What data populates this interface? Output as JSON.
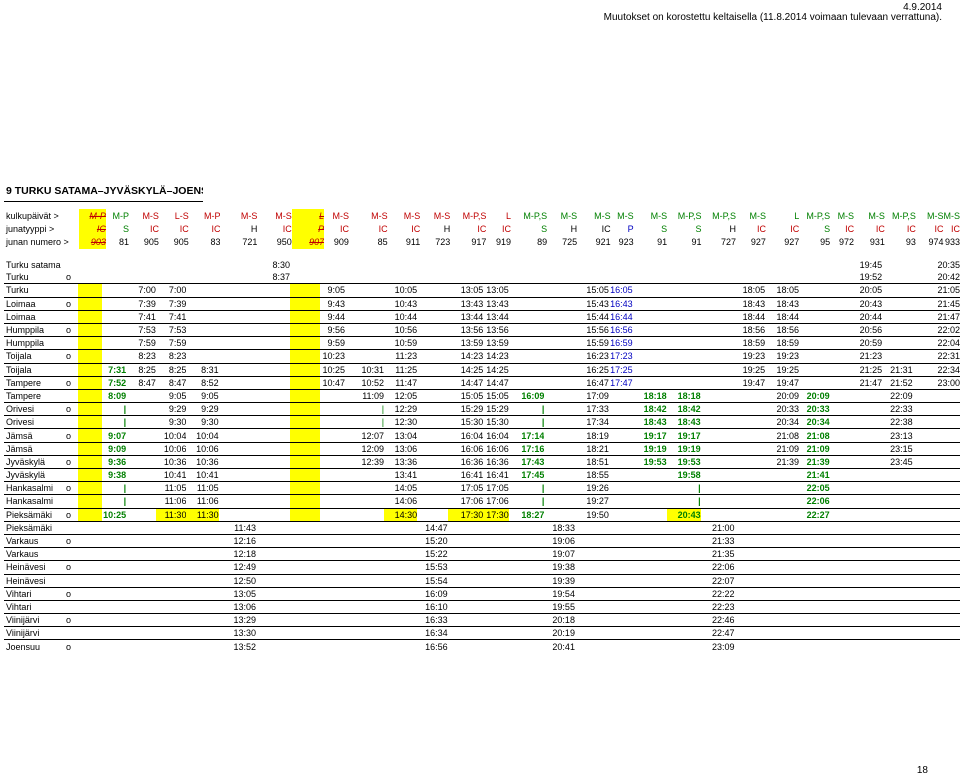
{
  "header": {
    "date": "4.9.2014",
    "notice": "Muutokset on korostettu keltaisella (11.8.2014 voimaan tulevaan verrattuna)."
  },
  "title": "9 TURKU SATAMA–JYVÄSKYLÄ–JOENSUU",
  "page_number": "18",
  "colors": {
    "highlight": "#ffff00",
    "red": "#c00000",
    "green": "#008000",
    "blue": "#0000c0"
  },
  "top_rows": [
    {
      "label": "kulkupäivät >",
      "cells": [
        "M-P",
        "M-P",
        "M-S",
        "L-S",
        "M-P",
        "M-S",
        "M-S",
        "L",
        "M-S",
        "M-S",
        "M-S",
        "M-S",
        "M-P,S",
        "L",
        "M-P,S",
        "M-S",
        "M-S",
        "M-S",
        "M-S",
        "M-P,S",
        "M-P,S",
        "M-S",
        "L",
        "M-P,S",
        "M-S",
        "M-S",
        "M-P,S",
        "M-S",
        "M-S"
      ]
    },
    {
      "label": "junatyyppi >",
      "cells": [
        "IC",
        "S",
        "IC",
        "IC",
        "IC",
        "H",
        "IC",
        "P",
        "IC",
        "IC",
        "IC",
        "H",
        "IC",
        "IC",
        "S",
        "H",
        "IC",
        "P",
        "S",
        "S",
        "H",
        "IC",
        "IC",
        "S",
        "IC",
        "IC",
        "IC",
        "IC",
        "IC"
      ]
    },
    {
      "label": "junan numero >",
      "cells": [
        "903",
        "81",
        "905",
        "905",
        "83",
        "721",
        "950",
        "907",
        "909",
        "85",
        "911",
        "723",
        "917",
        "919",
        "89",
        "725",
        "921",
        "923",
        "91",
        "91",
        "727",
        "927",
        "927",
        "95",
        "972",
        "931",
        "93",
        "974",
        "933"
      ]
    }
  ],
  "stations": [
    {
      "name": "Turku satama",
      "mark": "",
      "times": [
        "",
        "",
        "",
        "",
        "",
        "",
        "8:30",
        "",
        "",
        "",
        "",
        "",
        "",
        "",
        "",
        "",
        "",
        "",
        "",
        "",
        "",
        "",
        "",
        "",
        "",
        "19:45",
        "",
        "",
        "20:35"
      ]
    },
    {
      "name": "Turku",
      "mark": "o",
      "times": [
        "",
        "",
        "",
        "",
        "",
        "",
        "8:37",
        "",
        "",
        "",
        "",
        "",
        "",
        "",
        "",
        "",
        "",
        "",
        "",
        "",
        "",
        "",
        "",
        "",
        "",
        "19:52",
        "",
        "",
        "20:42"
      ]
    },
    {
      "name": "Turku",
      "mark": "",
      "times": [
        "",
        "",
        "7:00",
        "7:00",
        "",
        "",
        "",
        "",
        "9:05",
        "",
        "10:05",
        "",
        "13:05",
        "13:05",
        "",
        "",
        "15:05",
        "16:05",
        "",
        "",
        "",
        "18:05",
        "18:05",
        "",
        "",
        "20:05",
        "",
        "",
        "21:05"
      ]
    },
    {
      "name": "Loimaa",
      "mark": "o",
      "times": [
        "",
        "",
        "7:39",
        "7:39",
        "",
        "",
        "",
        "",
        "9:43",
        "",
        "10:43",
        "",
        "13:43",
        "13:43",
        "",
        "",
        "15:43",
        "16:43",
        "",
        "",
        "",
        "18:43",
        "18:43",
        "",
        "",
        "20:43",
        "",
        "",
        "21:45"
      ]
    },
    {
      "name": "Loimaa",
      "mark": "",
      "times": [
        "",
        "",
        "7:41",
        "7:41",
        "",
        "",
        "",
        "",
        "9:44",
        "",
        "10:44",
        "",
        "13:44",
        "13:44",
        "",
        "",
        "15:44",
        "16:44",
        "",
        "",
        "",
        "18:44",
        "18:44",
        "",
        "",
        "20:44",
        "",
        "",
        "21:47"
      ]
    },
    {
      "name": "Humppila",
      "mark": "o",
      "times": [
        "",
        "",
        "7:53",
        "7:53",
        "",
        "",
        "",
        "",
        "9:56",
        "",
        "10:56",
        "",
        "13:56",
        "13:56",
        "",
        "",
        "15:56",
        "16:56",
        "",
        "",
        "",
        "18:56",
        "18:56",
        "",
        "",
        "20:56",
        "",
        "",
        "22:02"
      ]
    },
    {
      "name": "Humppila",
      "mark": "",
      "times": [
        "",
        "",
        "7:59",
        "7:59",
        "",
        "",
        "",
        "",
        "9:59",
        "",
        "10:59",
        "",
        "13:59",
        "13:59",
        "",
        "",
        "15:59",
        "16:59",
        "",
        "",
        "",
        "18:59",
        "18:59",
        "",
        "",
        "20:59",
        "",
        "",
        "22:04"
      ]
    },
    {
      "name": "Toijala",
      "mark": "o",
      "times": [
        "",
        "",
        "8:23",
        "8:23",
        "",
        "",
        "",
        "",
        "10:23",
        "",
        "11:23",
        "",
        "14:23",
        "14:23",
        "",
        "",
        "16:23",
        "17:23",
        "",
        "",
        "",
        "19:23",
        "19:23",
        "",
        "",
        "21:23",
        "",
        "",
        "22:31"
      ]
    },
    {
      "name": "Toijala",
      "mark": "",
      "times": [
        "",
        "7:31",
        "8:25",
        "8:25",
        "8:31",
        "",
        "",
        "",
        "10:25",
        "10:31",
        "11:25",
        "",
        "14:25",
        "14:25",
        "",
        "",
        "16:25",
        "17:25",
        "",
        "",
        "",
        "19:25",
        "19:25",
        "",
        "",
        "21:25",
        "21:31",
        "",
        "22:34"
      ]
    },
    {
      "name": "Tampere",
      "mark": "o",
      "times": [
        "",
        "7:52",
        "8:47",
        "8:47",
        "8:52",
        "",
        "",
        "",
        "10:47",
        "10:52",
        "11:47",
        "",
        "14:47",
        "14:47",
        "",
        "",
        "16:47",
        "17:47",
        "",
        "",
        "",
        "19:47",
        "19:47",
        "",
        "",
        "21:47",
        "21:52",
        "",
        "23:00"
      ]
    },
    {
      "name": "Tampere",
      "mark": "",
      "times": [
        "",
        "8:09",
        "",
        "9:05",
        "9:05",
        "",
        "",
        "",
        "",
        "11:09",
        "12:05",
        "",
        "15:05",
        "15:05",
        "16:09",
        "",
        "17:09",
        "",
        "18:18",
        "18:18",
        "",
        "",
        "20:09",
        "20:09",
        "",
        "",
        "22:09",
        "",
        ""
      ]
    },
    {
      "name": "Orivesi",
      "mark": "o",
      "times": [
        "",
        "|",
        "",
        "9:29",
        "9:29",
        "",
        "",
        "",
        "",
        "|",
        "12:29",
        "",
        "15:29",
        "15:29",
        "|",
        "",
        "17:33",
        "",
        "18:42",
        "18:42",
        "",
        "",
        "20:33",
        "20:33",
        "",
        "",
        "22:33",
        "",
        ""
      ]
    },
    {
      "name": "Orivesi",
      "mark": "",
      "times": [
        "",
        "|",
        "",
        "9:30",
        "9:30",
        "",
        "",
        "",
        "",
        "|",
        "12:30",
        "",
        "15:30",
        "15:30",
        "|",
        "",
        "17:34",
        "",
        "18:43",
        "18:43",
        "",
        "",
        "20:34",
        "20:34",
        "",
        "",
        "22:38",
        "",
        ""
      ]
    },
    {
      "name": "Jämsä",
      "mark": "o",
      "times": [
        "",
        "9:07",
        "",
        "10:04",
        "10:04",
        "",
        "",
        "",
        "",
        "12:07",
        "13:04",
        "",
        "16:04",
        "16:04",
        "17:14",
        "",
        "18:19",
        "",
        "19:17",
        "19:17",
        "",
        "",
        "21:08",
        "21:08",
        "",
        "",
        "23:13",
        "",
        ""
      ]
    },
    {
      "name": "Jämsä",
      "mark": "",
      "times": [
        "",
        "9:09",
        "",
        "10:06",
        "10:06",
        "",
        "",
        "",
        "",
        "12:09",
        "13:06",
        "",
        "16:06",
        "16:06",
        "17:16",
        "",
        "18:21",
        "",
        "19:19",
        "19:19",
        "",
        "",
        "21:09",
        "21:09",
        "",
        "",
        "23:15",
        "",
        ""
      ]
    },
    {
      "name": "Jyväskylä",
      "mark": "o",
      "times": [
        "",
        "9:36",
        "",
        "10:36",
        "10:36",
        "",
        "",
        "",
        "",
        "12:39",
        "13:36",
        "",
        "16:36",
        "16:36",
        "17:43",
        "",
        "18:51",
        "",
        "19:53",
        "19:53",
        "",
        "",
        "21:39",
        "21:39",
        "",
        "",
        "23:45",
        "",
        ""
      ]
    },
    {
      "name": "Jyväskylä",
      "mark": "",
      "times": [
        "",
        "9:38",
        "",
        "10:41",
        "10:41",
        "",
        "",
        "",
        "",
        "",
        "13:41",
        "",
        "16:41",
        "16:41",
        "17:45",
        "",
        "18:55",
        "",
        "",
        "19:58",
        "",
        "",
        "",
        "21:41",
        "",
        "",
        "",
        "",
        ""
      ]
    },
    {
      "name": "Hankasalmi",
      "mark": "o",
      "times": [
        "",
        "|",
        "",
        "11:05",
        "11:05",
        "",
        "",
        "",
        "",
        "",
        "14:05",
        "",
        "17:05",
        "17:05",
        "|",
        "",
        "19:26",
        "",
        "",
        "|",
        "",
        "",
        "",
        "22:05",
        "",
        "",
        "",
        "",
        ""
      ]
    },
    {
      "name": "Hankasalmi",
      "mark": "",
      "times": [
        "",
        "|",
        "",
        "11:06",
        "11:06",
        "",
        "",
        "",
        "",
        "",
        "14:06",
        "",
        "17:06",
        "17:06",
        "|",
        "",
        "19:27",
        "",
        "",
        "|",
        "",
        "",
        "",
        "22:06",
        "",
        "",
        "",
        "",
        ""
      ]
    },
    {
      "name": "Pieksämäki",
      "mark": "o",
      "times": [
        "",
        "10:25",
        "",
        "11:30",
        "11:30",
        "",
        "",
        "",
        "",
        "",
        "14:30",
        "",
        "17:30",
        "17:30",
        "18:27",
        "",
        "19:50",
        "",
        "",
        "20:43",
        "",
        "",
        "",
        "22:27",
        "",
        "",
        "",
        "",
        ""
      ]
    },
    {
      "name": "Pieksämäki",
      "mark": "",
      "times": [
        "",
        "",
        "",
        "",
        "",
        "11:43",
        "",
        "",
        "",
        "",
        "",
        "14:47",
        "",
        "",
        "",
        "18:33",
        "",
        "",
        "",
        "",
        "21:00",
        "",
        "",
        "",
        "",
        "",
        "",
        "",
        ""
      ]
    },
    {
      "name": "Varkaus",
      "mark": "o",
      "times": [
        "",
        "",
        "",
        "",
        "",
        "12:16",
        "",
        "",
        "",
        "",
        "",
        "15:20",
        "",
        "",
        "",
        "19:06",
        "",
        "",
        "",
        "",
        "21:33",
        "",
        "",
        "",
        "",
        "",
        "",
        "",
        ""
      ]
    },
    {
      "name": "Varkaus",
      "mark": "",
      "times": [
        "",
        "",
        "",
        "",
        "",
        "12:18",
        "",
        "",
        "",
        "",
        "",
        "15:22",
        "",
        "",
        "",
        "19:07",
        "",
        "",
        "",
        "",
        "21:35",
        "",
        "",
        "",
        "",
        "",
        "",
        "",
        ""
      ]
    },
    {
      "name": "Heinävesi",
      "mark": "o",
      "times": [
        "",
        "",
        "",
        "",
        "",
        "12:49",
        "",
        "",
        "",
        "",
        "",
        "15:53",
        "",
        "",
        "",
        "19:38",
        "",
        "",
        "",
        "",
        "22:06",
        "",
        "",
        "",
        "",
        "",
        "",
        "",
        ""
      ]
    },
    {
      "name": "Heinävesi",
      "mark": "",
      "times": [
        "",
        "",
        "",
        "",
        "",
        "12:50",
        "",
        "",
        "",
        "",
        "",
        "15:54",
        "",
        "",
        "",
        "19:39",
        "",
        "",
        "",
        "",
        "22:07",
        "",
        "",
        "",
        "",
        "",
        "",
        "",
        ""
      ]
    },
    {
      "name": "Vihtari",
      "mark": "o",
      "times": [
        "",
        "",
        "",
        "",
        "",
        "13:05",
        "",
        "",
        "",
        "",
        "",
        "16:09",
        "",
        "",
        "",
        "19:54",
        "",
        "",
        "",
        "",
        "22:22",
        "",
        "",
        "",
        "",
        "",
        "",
        "",
        ""
      ]
    },
    {
      "name": "Vihtari",
      "mark": "",
      "times": [
        "",
        "",
        "",
        "",
        "",
        "13:06",
        "",
        "",
        "",
        "",
        "",
        "16:10",
        "",
        "",
        "",
        "19:55",
        "",
        "",
        "",
        "",
        "22:23",
        "",
        "",
        "",
        "",
        "",
        "",
        "",
        ""
      ]
    },
    {
      "name": "Viinijärvi",
      "mark": "o",
      "times": [
        "",
        "",
        "",
        "",
        "",
        "13:29",
        "",
        "",
        "",
        "",
        "",
        "16:33",
        "",
        "",
        "",
        "20:18",
        "",
        "",
        "",
        "",
        "22:46",
        "",
        "",
        "",
        "",
        "",
        "",
        "",
        ""
      ]
    },
    {
      "name": "Viinijärvi",
      "mark": "",
      "times": [
        "",
        "",
        "",
        "",
        "",
        "13:30",
        "",
        "",
        "",
        "",
        "",
        "16:34",
        "",
        "",
        "",
        "20:19",
        "",
        "",
        "",
        "",
        "22:47",
        "",
        "",
        "",
        "",
        "",
        "",
        "",
        ""
      ]
    },
    {
      "name": "Joensuu",
      "mark": "o",
      "times": [
        "",
        "",
        "",
        "",
        "",
        "13:52",
        "",
        "",
        "",
        "",
        "",
        "16:56",
        "",
        "",
        "",
        "20:41",
        "",
        "",
        "",
        "",
        "23:09",
        "",
        "",
        "",
        "",
        "",
        "",
        "",
        ""
      ]
    }
  ]
}
